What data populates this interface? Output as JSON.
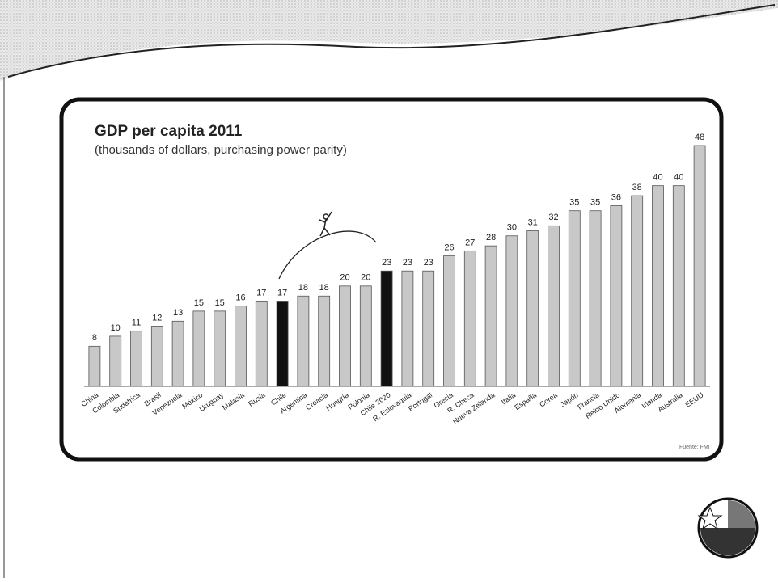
{
  "chart_data": {
    "type": "bar",
    "title": "GDP per capita 2011",
    "subtitle": "(thousands of dollars, purchasing power parity)",
    "categories": [
      "China",
      "Colombia",
      "Sudáfrica",
      "Brasil",
      "Venezuela",
      "México",
      "Uruguay",
      "Malasia",
      "Rusia",
      "Chile",
      "Argentina",
      "Croacia",
      "Hungría",
      "Polonia",
      "Chile 2020",
      "R. Eslovaquia",
      "Portugal",
      "Grecia",
      "R. Checa",
      "Nueva Zelanda",
      "Italia",
      "España",
      "Corea",
      "Japón",
      "Francia",
      "Reino Unido",
      "Alemania",
      "Irlanda",
      "Australia",
      "EEUU"
    ],
    "values": [
      8,
      10,
      11,
      12,
      13,
      15,
      15,
      16,
      17,
      17,
      18,
      18,
      20,
      20,
      23,
      23,
      23,
      26,
      27,
      28,
      30,
      31,
      32,
      35,
      35,
      36,
      38,
      40,
      40,
      48
    ],
    "colors": [
      "#c8c8c8",
      "#c8c8c8",
      "#c8c8c8",
      "#c8c8c8",
      "#c8c8c8",
      "#c8c8c8",
      "#c8c8c8",
      "#c8c8c8",
      "#c8c8c8",
      "#111111",
      "#c8c8c8",
      "#c8c8c8",
      "#c8c8c8",
      "#c8c8c8",
      "#111111",
      "#c8c8c8",
      "#c8c8c8",
      "#c8c8c8",
      "#c8c8c8",
      "#c8c8c8",
      "#c8c8c8",
      "#c8c8c8",
      "#c8c8c8",
      "#c8c8c8",
      "#c8c8c8",
      "#c8c8c8",
      "#c8c8c8",
      "#c8c8c8",
      "#c8c8c8",
      "#c8c8c8"
    ],
    "source": "Fuente: FMI"
  }
}
